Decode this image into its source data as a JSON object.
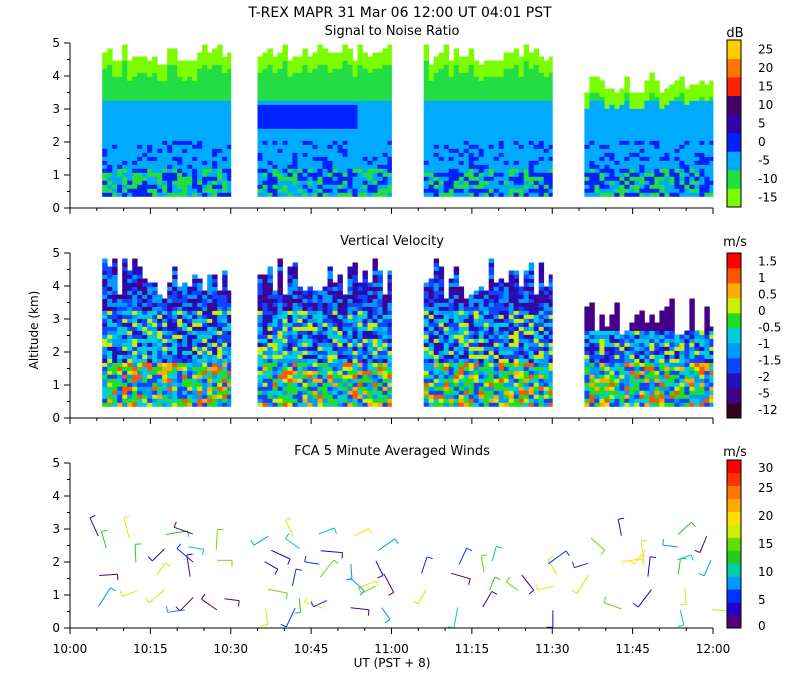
{
  "figure": {
    "title": "T-REX   MAPR 31 Mar 06   12:00 UT   04:01   PST",
    "ylabel": "Altitude (km)",
    "xlabel": "UT  (PST + 8)",
    "x_ticks": [
      "10:00",
      "10:15",
      "10:30",
      "10:45",
      "11:00",
      "11:15",
      "11:30",
      "11:45",
      "12:00"
    ],
    "x_range_minutes": [
      0,
      120
    ]
  },
  "chart_data": [
    {
      "type": "heatmap",
      "title": "Signal to Noise Ratio",
      "ylim": [
        0,
        5
      ],
      "y_ticks": [
        "0",
        "1",
        "2",
        "3",
        "4",
        "5"
      ],
      "colorbar": {
        "unit": "dB",
        "labels": [
          "-15",
          "-10",
          "-5",
          "0",
          "5",
          "10",
          "15",
          "20",
          "25"
        ],
        "colors": [
          "#7cfc00",
          "#22dd44",
          "#00aaff",
          "#0022ff",
          "#3300aa",
          "#440066",
          "#ff2200",
          "#ff7700",
          "#ffcc00"
        ]
      },
      "segments_minutes": [
        [
          6,
          30
        ],
        [
          35,
          60
        ],
        [
          66,
          90
        ],
        [
          96,
          120
        ]
      ],
      "layers": [
        {
          "from_km": 0.3,
          "to_km": 1.0,
          "value_db": -3
        },
        {
          "from_km": 1.0,
          "to_km": 2.0,
          "value_db": -8
        },
        {
          "from_km": 2.0,
          "to_km": 3.3,
          "value_db": -6
        },
        {
          "from_km": 3.3,
          "to_km": 4.3,
          "value_db": -12
        },
        {
          "from_km": 4.3,
          "to_km": 4.9,
          "value_db": -15
        }
      ]
    },
    {
      "type": "heatmap",
      "title": "Vertical Velocity",
      "ylim": [
        0,
        5
      ],
      "y_ticks": [
        "0",
        "1",
        "2",
        "3",
        "4",
        "5"
      ],
      "colorbar": {
        "unit": "m/s",
        "labels": [
          "-12",
          "-5",
          "-2",
          "-1.5",
          "-1",
          "-0.5",
          "0",
          "0.5",
          "1",
          "1.5"
        ],
        "colors": [
          "#330022",
          "#440088",
          "#2211bb",
          "#1144ff",
          "#0099ff",
          "#00ccdd",
          "#22dd22",
          "#ccee00",
          "#ffaa00",
          "#ff5500",
          "#ff0000"
        ]
      },
      "segments_minutes": [
        [
          6,
          30
        ],
        [
          35,
          60
        ],
        [
          66,
          90
        ],
        [
          96,
          120
        ]
      ],
      "layers": [
        {
          "from_km": 0.3,
          "to_km": 1.8,
          "value_ms": 0.3
        },
        {
          "from_km": 1.8,
          "to_km": 3.5,
          "value_ms": -1.2
        },
        {
          "from_km": 3.5,
          "to_km": 4.6,
          "value_ms": -1.8
        }
      ]
    },
    {
      "type": "scatter",
      "title": "FCA 5 Minute Averaged Winds",
      "ylim": [
        0,
        5
      ],
      "y_ticks": [
        "0",
        "1",
        "2",
        "3",
        "4",
        "5"
      ],
      "colorbar": {
        "unit": "m/s",
        "labels": [
          "0",
          "5",
          "10",
          "15",
          "20",
          "25",
          "30"
        ],
        "colors": [
          "#550077",
          "#2200cc",
          "#0033ff",
          "#0099ff",
          "#00ccaa",
          "#22cc22",
          "#66dd00",
          "#ccee00",
          "#ffdd00",
          "#ffaa00",
          "#ff7700",
          "#ff3300",
          "#ff0000"
        ]
      },
      "barb_altitudes_km": [
        0.6,
        0.9,
        1.2,
        1.6,
        2.0,
        2.4,
        2.8
      ],
      "barb_times_minutes": [
        6,
        12,
        17,
        22,
        28,
        37,
        42,
        47,
        53,
        58,
        66,
        72,
        78,
        84,
        90,
        97,
        102,
        108,
        114,
        119
      ]
    }
  ]
}
